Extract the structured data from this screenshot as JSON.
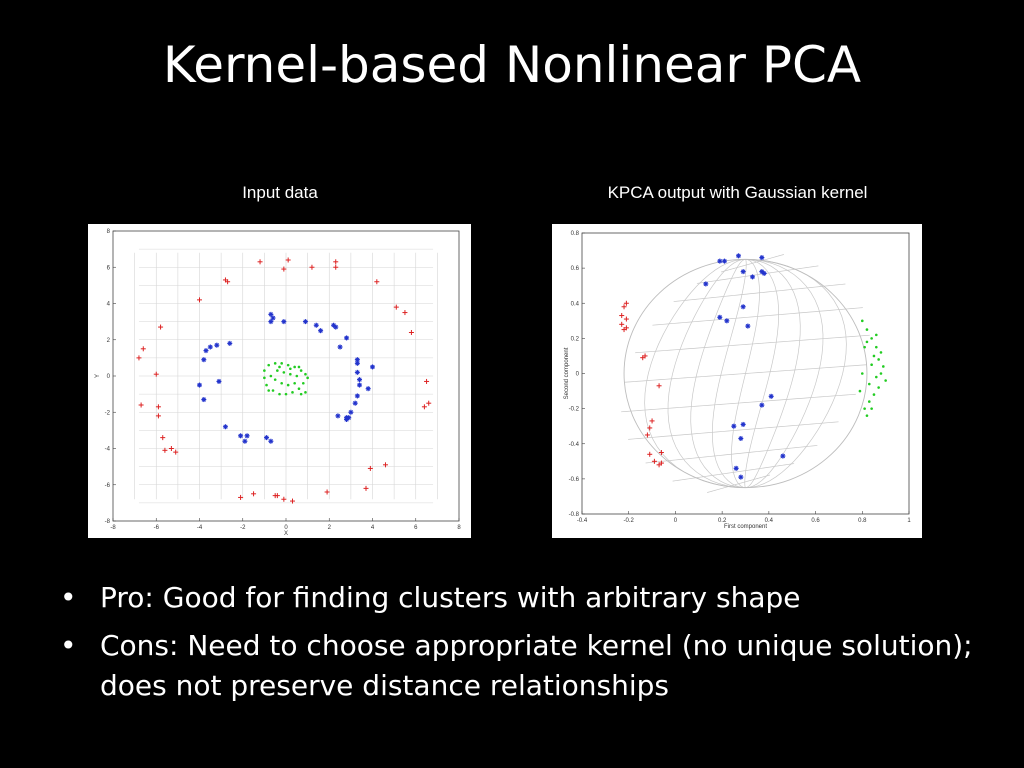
{
  "slide": {
    "title": "Kernel-based Nonlinear PCA",
    "bullets": [
      "Pro: Good for finding clusters with arbitrary shape",
      "Cons: Need to choose appropriate kernel (no unique solution); does not preserve distance relationships"
    ],
    "bullet_glyph": "•"
  },
  "chart_data": [
    {
      "type": "scatter",
      "title": "Input data",
      "xlabel": "X",
      "ylabel": "Y",
      "xlim": [
        -8,
        8
      ],
      "ylim": [
        -8,
        8
      ],
      "xticks": [
        "-8",
        "-6",
        "-4",
        "-2",
        "0",
        "2",
        "4",
        "6",
        "8"
      ],
      "yticks": [
        "-8",
        "-6",
        "-4",
        "-2",
        "0",
        "2",
        "4",
        "6",
        "8"
      ],
      "grid": true,
      "series": [
        {
          "color": "#dd2222",
          "marker": "+",
          "points": [
            [
              -1.2,
              6.3
            ],
            [
              0.1,
              6.4
            ],
            [
              -0.1,
              5.9
            ],
            [
              1.2,
              6.0
            ],
            [
              2.3,
              6.3
            ],
            [
              2.3,
              6.0
            ],
            [
              -2.8,
              5.3
            ],
            [
              -2.7,
              5.2
            ],
            [
              -4.0,
              4.2
            ],
            [
              4.2,
              5.2
            ],
            [
              5.1,
              3.8
            ],
            [
              5.5,
              3.5
            ],
            [
              5.8,
              2.4
            ],
            [
              -5.8,
              2.7
            ],
            [
              -6.6,
              1.5
            ],
            [
              -6.8,
              1.0
            ],
            [
              -6.0,
              0.1
            ],
            [
              6.5,
              -0.3
            ],
            [
              6.6,
              -1.5
            ],
            [
              6.4,
              -1.7
            ],
            [
              -6.7,
              -1.6
            ],
            [
              -5.9,
              -1.7
            ],
            [
              -5.9,
              -2.2
            ],
            [
              -5.7,
              -3.4
            ],
            [
              -5.6,
              -4.1
            ],
            [
              -5.3,
              -4.0
            ],
            [
              -5.1,
              -4.2
            ],
            [
              4.6,
              -4.9
            ],
            [
              3.9,
              -5.1
            ],
            [
              3.7,
              -6.2
            ],
            [
              -2.1,
              -6.7
            ],
            [
              -1.5,
              -6.5
            ],
            [
              -0.5,
              -6.6
            ],
            [
              -0.4,
              -6.6
            ],
            [
              -0.1,
              -6.8
            ],
            [
              0.3,
              -6.9
            ],
            [
              1.9,
              -6.4
            ]
          ]
        },
        {
          "color": "#2233cc",
          "marker": "*",
          "points": [
            [
              -0.7,
              3.4
            ],
            [
              -0.6,
              3.2
            ],
            [
              -0.7,
              3.0
            ],
            [
              -0.1,
              3.0
            ],
            [
              0.9,
              3.0
            ],
            [
              1.4,
              2.8
            ],
            [
              1.6,
              2.5
            ],
            [
              2.2,
              2.8
            ],
            [
              2.3,
              2.7
            ],
            [
              2.8,
              2.1
            ],
            [
              2.5,
              1.6
            ],
            [
              -2.6,
              1.8
            ],
            [
              -3.2,
              1.7
            ],
            [
              -3.5,
              1.6
            ],
            [
              -3.7,
              1.4
            ],
            [
              -3.8,
              0.9
            ],
            [
              3.3,
              0.9
            ],
            [
              3.3,
              0.7
            ],
            [
              4.0,
              0.5
            ],
            [
              3.3,
              0.2
            ],
            [
              3.4,
              -0.2
            ],
            [
              3.4,
              -0.5
            ],
            [
              3.8,
              -0.7
            ],
            [
              3.3,
              -1.1
            ],
            [
              3.2,
              -1.5
            ],
            [
              3.0,
              -2.0
            ],
            [
              2.8,
              -2.3
            ],
            [
              2.4,
              -2.2
            ],
            [
              2.9,
              -2.3
            ],
            [
              2.8,
              -2.4
            ],
            [
              -4.0,
              -0.5
            ],
            [
              -3.8,
              -1.3
            ],
            [
              -3.1,
              -0.3
            ],
            [
              -2.8,
              -2.8
            ],
            [
              -2.1,
              -3.3
            ],
            [
              -1.8,
              -3.3
            ],
            [
              -1.9,
              -3.6
            ],
            [
              -0.9,
              -3.4
            ],
            [
              -0.7,
              -3.6
            ]
          ]
        },
        {
          "color": "#22cc22",
          "marker": ".",
          "points": [
            [
              -0.8,
              0.6
            ],
            [
              -0.5,
              0.7
            ],
            [
              -0.2,
              0.7
            ],
            [
              0.1,
              0.6
            ],
            [
              0.4,
              0.5
            ],
            [
              0.7,
              0.3
            ],
            [
              0.9,
              0.1
            ],
            [
              1.0,
              -0.1
            ],
            [
              -1.0,
              0.3
            ],
            [
              -1.0,
              -0.1
            ],
            [
              -0.9,
              -0.5
            ],
            [
              -0.6,
              -0.8
            ],
            [
              -0.3,
              -1.0
            ],
            [
              0.0,
              -1.0
            ],
            [
              0.3,
              -0.9
            ],
            [
              0.6,
              -0.7
            ],
            [
              0.8,
              -0.4
            ],
            [
              0.9,
              -0.9
            ],
            [
              -0.4,
              0.3
            ],
            [
              -0.1,
              0.2
            ],
            [
              0.2,
              0.1
            ],
            [
              0.5,
              0.0
            ],
            [
              -0.5,
              -0.2
            ],
            [
              -0.2,
              -0.4
            ],
            [
              0.1,
              -0.5
            ],
            [
              0.4,
              -0.4
            ],
            [
              -0.7,
              0.0
            ],
            [
              0.2,
              0.4
            ],
            [
              -0.3,
              0.5
            ],
            [
              0.6,
              0.5
            ],
            [
              -0.8,
              -0.8
            ],
            [
              0.7,
              -1.0
            ]
          ]
        }
      ]
    },
    {
      "type": "scatter",
      "title": "KPCA output with Gaussian kernel",
      "xlabel": "First component",
      "ylabel": "Second component",
      "xlim": [
        -0.4,
        1.0
      ],
      "ylim": [
        -0.8,
        0.8
      ],
      "xticks": [
        "-0.4",
        "-0.2",
        "0",
        "0.2",
        "0.4",
        "0.6",
        "0.8",
        "1"
      ],
      "yticks": [
        "-0.8",
        "-0.6",
        "-0.4",
        "-0.2",
        "0",
        "0.2",
        "0.4",
        "0.6",
        "0.8"
      ],
      "grid": false,
      "surface": "wireframe",
      "series": [
        {
          "color": "#dd2222",
          "marker": "+",
          "points": [
            [
              -0.21,
              0.4
            ],
            [
              -0.22,
              0.38
            ],
            [
              -0.23,
              0.33
            ],
            [
              -0.21,
              0.31
            ],
            [
              -0.23,
              0.28
            ],
            [
              -0.22,
              0.25
            ],
            [
              -0.21,
              0.26
            ],
            [
              -0.13,
              0.1
            ],
            [
              -0.14,
              0.09
            ],
            [
              -0.07,
              -0.07
            ],
            [
              -0.1,
              -0.27
            ],
            [
              -0.11,
              -0.31
            ],
            [
              -0.12,
              -0.35
            ],
            [
              -0.11,
              -0.46
            ],
            [
              -0.09,
              -0.5
            ],
            [
              -0.07,
              -0.52
            ],
            [
              -0.06,
              -0.51
            ],
            [
              -0.06,
              -0.45
            ]
          ]
        },
        {
          "color": "#2233cc",
          "marker": "*",
          "points": [
            [
              0.19,
              0.64
            ],
            [
              0.21,
              0.64
            ],
            [
              0.27,
              0.67
            ],
            [
              0.37,
              0.66
            ],
            [
              0.29,
              0.58
            ],
            [
              0.37,
              0.58
            ],
            [
              0.38,
              0.57
            ],
            [
              0.33,
              0.55
            ],
            [
              0.13,
              0.51
            ],
            [
              0.29,
              0.38
            ],
            [
              0.19,
              0.32
            ],
            [
              0.22,
              0.3
            ],
            [
              0.31,
              0.27
            ],
            [
              0.41,
              -0.13
            ],
            [
              0.37,
              -0.18
            ],
            [
              0.25,
              -0.3
            ],
            [
              0.29,
              -0.29
            ],
            [
              0.28,
              -0.37
            ],
            [
              0.46,
              -0.47
            ],
            [
              0.26,
              -0.54
            ],
            [
              0.28,
              -0.59
            ]
          ]
        },
        {
          "color": "#22cc22",
          "marker": ".",
          "points": [
            [
              0.8,
              0.3
            ],
            [
              0.82,
              0.25
            ],
            [
              0.84,
              0.2
            ],
            [
              0.86,
              0.15
            ],
            [
              0.88,
              0.12
            ],
            [
              0.87,
              0.08
            ],
            [
              0.89,
              0.04
            ],
            [
              0.88,
              0.0
            ],
            [
              0.9,
              -0.04
            ],
            [
              0.87,
              -0.08
            ],
            [
              0.85,
              -0.12
            ],
            [
              0.83,
              -0.16
            ],
            [
              0.81,
              -0.2
            ],
            [
              0.82,
              -0.24
            ],
            [
              0.84,
              0.05
            ],
            [
              0.86,
              -0.02
            ],
            [
              0.85,
              0.1
            ],
            [
              0.83,
              -0.06
            ],
            [
              0.81,
              0.15
            ],
            [
              0.79,
              -0.1
            ],
            [
              0.8,
              0.0
            ],
            [
              0.82,
              0.18
            ],
            [
              0.84,
              -0.2
            ],
            [
              0.86,
              0.22
            ]
          ]
        }
      ]
    }
  ]
}
